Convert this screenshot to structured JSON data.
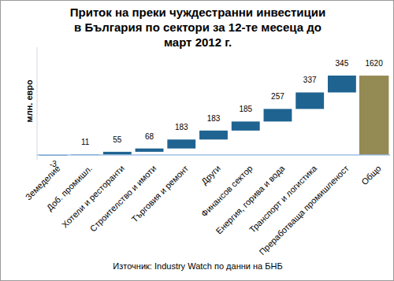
{
  "chart_data": {
    "type": "waterfall",
    "title": "Приток на преки чуждестранни инвестиции в България по сектори за 12-те месеца до март 2012 г.",
    "ylabel": "млн. евро",
    "source": "Източник: Industry Watch по данни на БНБ",
    "categories": [
      "Земеделие",
      "Доб. промишл.",
      "Хотели и ресторанти",
      "Строителство и имоти",
      "Търговия и ремонт",
      "Други",
      "Финансов сектор",
      "Енергия, горива и вода",
      "Транспорт и логистика",
      "Преработваща промишленост",
      "Общо"
    ],
    "values": [
      -3,
      11,
      55,
      68,
      183,
      183,
      185,
      257,
      337,
      345,
      1620
    ],
    "colors": [
      "#1f6391",
      "#1f6391",
      "#1f6391",
      "#1f6391",
      "#1f6391",
      "#1f6391",
      "#1f6391",
      "#1f6391",
      "#1f6391",
      "#1f6391",
      "#948a54"
    ],
    "ylim": [
      -100,
      2200
    ],
    "tick_labels": false,
    "data_labels": true
  }
}
